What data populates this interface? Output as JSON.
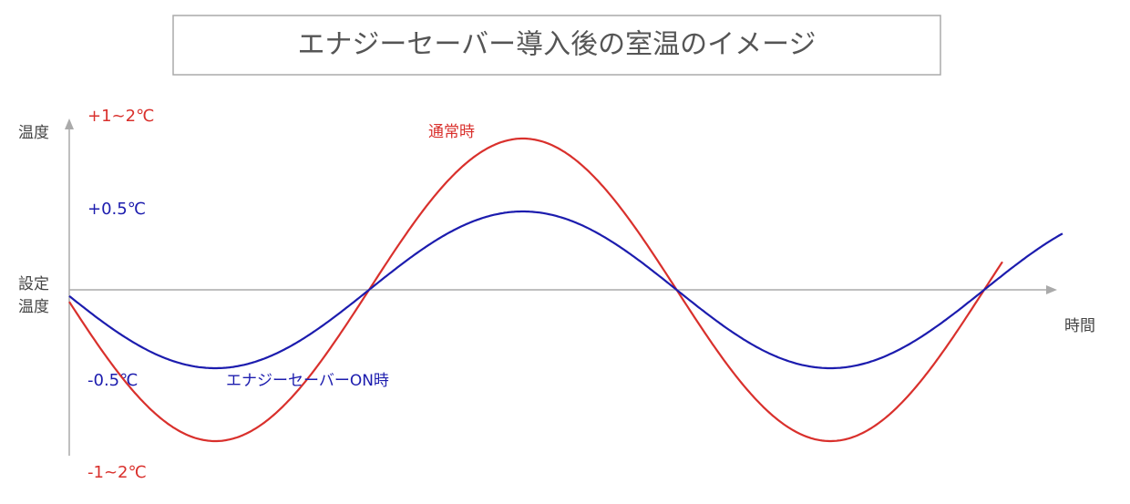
{
  "title": "エナジーセーバー導入後の室温のイメージ",
  "y_axis_label": "温度",
  "origin_label": [
    "設定",
    "温度"
  ],
  "x_axis_label": "時間",
  "levels": {
    "normal_high": "+1~2℃",
    "saver_high": "+0.5℃",
    "saver_low": "-0.5℃",
    "normal_low": "-1~2℃"
  },
  "curves": {
    "normal": "通常時",
    "saver": "エナジーセーバーON時"
  }
}
